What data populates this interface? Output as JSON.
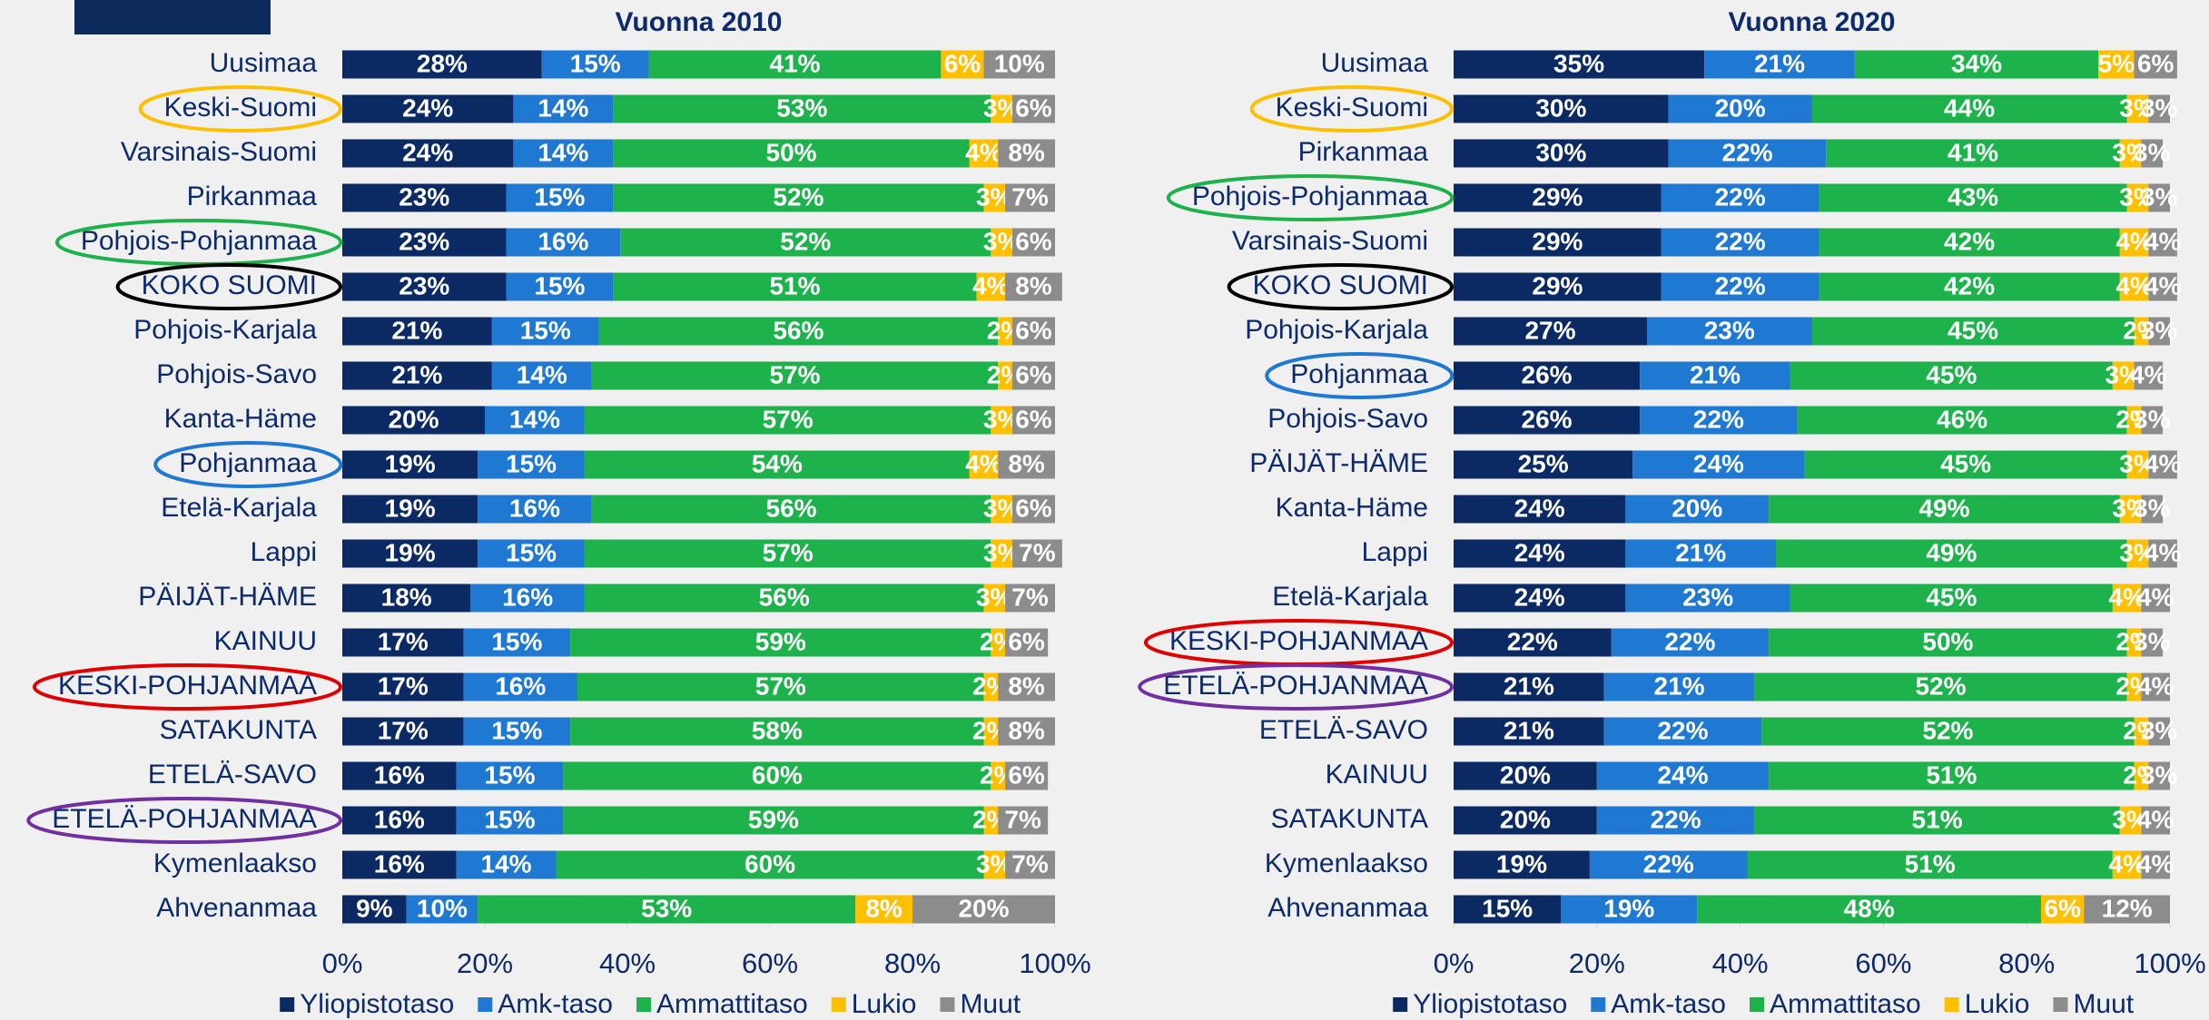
{
  "chart_data": [
    {
      "type": "bar",
      "orientation": "horizontal",
      "stacked": true,
      "title": "Vuonna 2010",
      "categories": [
        "Uusimaa",
        "Keski-Suomi",
        "Varsinais-Suomi",
        "Pirkanmaa",
        "Pohjois-Pohjanmaa",
        "KOKO SUOMI",
        "Pohjois-Karjala",
        "Pohjois-Savo",
        "Kanta-Häme",
        "Pohjanmaa",
        "Etelä-Karjala",
        "Lappi",
        "PÄIJÄT-HÄME",
        "KAINUU",
        "KESKI-POHJANMAA",
        "SATAKUNTA",
        "ETELÄ-SAVO",
        "ETELÄ-POHJANMAA",
        "Kymenlaakso",
        "Ahvenanmaa"
      ],
      "series": [
        {
          "name": "Yliopistotaso",
          "color": "#0b2a63",
          "values": [
            28,
            24,
            24,
            23,
            23,
            23,
            21,
            21,
            20,
            19,
            19,
            19,
            18,
            17,
            17,
            17,
            16,
            16,
            16,
            9
          ],
          "value_labels": [
            "28%",
            "24%",
            "24%",
            "23%",
            "23%",
            "23%",
            "21%",
            "21%",
            "20%",
            "19%",
            "19%",
            "19%",
            "18%",
            "17%",
            "17%",
            "17%",
            "16%",
            "16%",
            "16%",
            "9%"
          ]
        },
        {
          "name": "Amk-taso",
          "color": "#1f78d1",
          "values": [
            15,
            14,
            14,
            15,
            16,
            15,
            15,
            14,
            14,
            15,
            16,
            15,
            16,
            15,
            16,
            15,
            15,
            15,
            14,
            10
          ],
          "value_labels": [
            "15%",
            "14%",
            "14%",
            "15%",
            "16%",
            "15%",
            "15%",
            "14%",
            "14%",
            "15%",
            "16%",
            "15%",
            "16%",
            "15%",
            "16%",
            "15%",
            "15%",
            "15%",
            "14%",
            "10%"
          ]
        },
        {
          "name": "Ammattitaso",
          "color": "#1db24b",
          "values": [
            41,
            53,
            50,
            52,
            52,
            51,
            56,
            57,
            57,
            54,
            56,
            57,
            56,
            59,
            57,
            58,
            60,
            59,
            60,
            53
          ],
          "value_labels": [
            "41%",
            "53%",
            "50%",
            "52%",
            "52%",
            "51%",
            "56%",
            "57%",
            "57%",
            "54%",
            "56%",
            "57%",
            "56%",
            "59%",
            "57%",
            "58%",
            "60%",
            "59%",
            "60%",
            "53%"
          ]
        },
        {
          "name": "Lukio",
          "color": "#ffc000",
          "values": [
            6,
            3,
            4,
            3,
            3,
            4,
            2,
            2,
            3,
            4,
            3,
            3,
            3,
            2,
            2,
            2,
            2,
            2,
            3,
            8
          ],
          "value_labels": [
            "6%",
            "3%",
            "4%",
            "3%",
            "3%",
            "4%",
            "2%",
            "2%",
            "3%",
            "4%",
            "3%",
            "3%",
            "3%",
            "2%",
            "2%",
            "2%",
            "2%",
            "2%",
            "3%",
            "8%"
          ]
        },
        {
          "name": "Muut",
          "color": "#8c8c8c",
          "values": [
            10,
            6,
            8,
            7,
            6,
            8,
            6,
            6,
            6,
            8,
            6,
            7,
            7,
            6,
            8,
            8,
            6,
            7,
            7,
            20
          ],
          "value_labels": [
            "10%",
            "6%",
            "8%",
            "7%",
            "6%",
            "8%",
            "6%",
            "6%",
            "6%",
            "8%",
            "6%",
            "7%",
            "7%",
            "6%",
            "8%",
            "8%",
            "6%",
            "7%",
            "7%",
            "20%"
          ]
        }
      ],
      "xlim": [
        0,
        100
      ],
      "xticks": [
        {
          "value": 0,
          "label": "0%"
        },
        {
          "value": 20,
          "label": "20%"
        },
        {
          "value": 40,
          "label": "40%"
        },
        {
          "value": 60,
          "label": "60%"
        },
        {
          "value": 80,
          "label": "80%"
        },
        {
          "value": 100,
          "label": "100%"
        }
      ],
      "legend": "bottom"
    },
    {
      "type": "bar",
      "orientation": "horizontal",
      "stacked": true,
      "title": "Vuonna 2020",
      "categories": [
        "Uusimaa",
        "Keski-Suomi",
        "Pirkanmaa",
        "Pohjois-Pohjanmaa",
        "Varsinais-Suomi",
        "KOKO SUOMI",
        "Pohjois-Karjala",
        "Pohjanmaa",
        "Pohjois-Savo",
        "PÄIJÄT-HÄME",
        "Kanta-Häme",
        "Lappi",
        "Etelä-Karjala",
        "KESKI-POHJANMAA",
        "ETELÄ-POHJANMAA",
        "ETELÄ-SAVO",
        "KAINUU",
        "SATAKUNTA",
        "Kymenlaakso",
        "Ahvenanmaa"
      ],
      "series": [
        {
          "name": "Yliopistotaso",
          "color": "#0b2a63",
          "values": [
            35,
            30,
            30,
            29,
            29,
            29,
            27,
            26,
            26,
            25,
            24,
            24,
            24,
            22,
            21,
            21,
            20,
            20,
            19,
            15
          ],
          "value_labels": [
            "35%",
            "30%",
            "30%",
            "29%",
            "29%",
            "29%",
            "27%",
            "26%",
            "26%",
            "25%",
            "24%",
            "24%",
            "24%",
            "22%",
            "21%",
            "21%",
            "20%",
            "20%",
            "19%",
            "15%"
          ]
        },
        {
          "name": "Amk-taso",
          "color": "#1f78d1",
          "values": [
            21,
            20,
            22,
            22,
            22,
            22,
            23,
            21,
            22,
            24,
            20,
            21,
            23,
            22,
            21,
            22,
            24,
            22,
            22,
            19
          ],
          "value_labels": [
            "21%",
            "20%",
            "22%",
            "22%",
            "22%",
            "22%",
            "23%",
            "21%",
            "22%",
            "24%",
            "20%",
            "21%",
            "23%",
            "22%",
            "21%",
            "22%",
            "24%",
            "22%",
            "22%",
            "19%"
          ]
        },
        {
          "name": "Ammattitaso",
          "color": "#1db24b",
          "values": [
            34,
            44,
            41,
            43,
            42,
            42,
            45,
            45,
            46,
            45,
            49,
            49,
            45,
            50,
            52,
            52,
            51,
            51,
            51,
            48
          ],
          "value_labels": [
            "34%",
            "44%",
            "41%",
            "43%",
            "42%",
            "42%",
            "45%",
            "45%",
            "46%",
            "45%",
            "49%",
            "49%",
            "45%",
            "50%",
            "52%",
            "52%",
            "51%",
            "51%",
            "51%",
            "48%"
          ]
        },
        {
          "name": "Lukio",
          "color": "#ffc000",
          "values": [
            5,
            3,
            3,
            3,
            4,
            4,
            2,
            3,
            2,
            3,
            3,
            3,
            4,
            2,
            2,
            2,
            2,
            3,
            4,
            6
          ],
          "value_labels": [
            "5%",
            "3%",
            "3%",
            "3%",
            "4%",
            "4%",
            "2%",
            "3%",
            "2%",
            "3%",
            "3%",
            "3%",
            "4%",
            "2%",
            "2%",
            "2%",
            "2%",
            "3%",
            "4%",
            "6%"
          ]
        },
        {
          "name": "Muut",
          "color": "#8c8c8c",
          "values": [
            6,
            3,
            3,
            3,
            4,
            4,
            3,
            4,
            3,
            4,
            3,
            4,
            4,
            3,
            4,
            3,
            3,
            4,
            4,
            12
          ],
          "value_labels": [
            "6%",
            "3%",
            "3%",
            "3%",
            "4%",
            "4%",
            "3%",
            "4%",
            "3%",
            "4%",
            "3%",
            "4%",
            "4%",
            "3%",
            "4%",
            "3%",
            "3%",
            "4%",
            "4%",
            "12%"
          ]
        }
      ],
      "xlim": [
        0,
        100
      ],
      "xticks": [
        {
          "value": 0,
          "label": "0%"
        },
        {
          "value": 20,
          "label": "20%"
        },
        {
          "value": 40,
          "label": "40%"
        },
        {
          "value": 60,
          "label": "60%"
        },
        {
          "value": 80,
          "label": "80%"
        },
        {
          "value": 100,
          "label": "100%"
        }
      ],
      "legend": "bottom"
    }
  ]
}
